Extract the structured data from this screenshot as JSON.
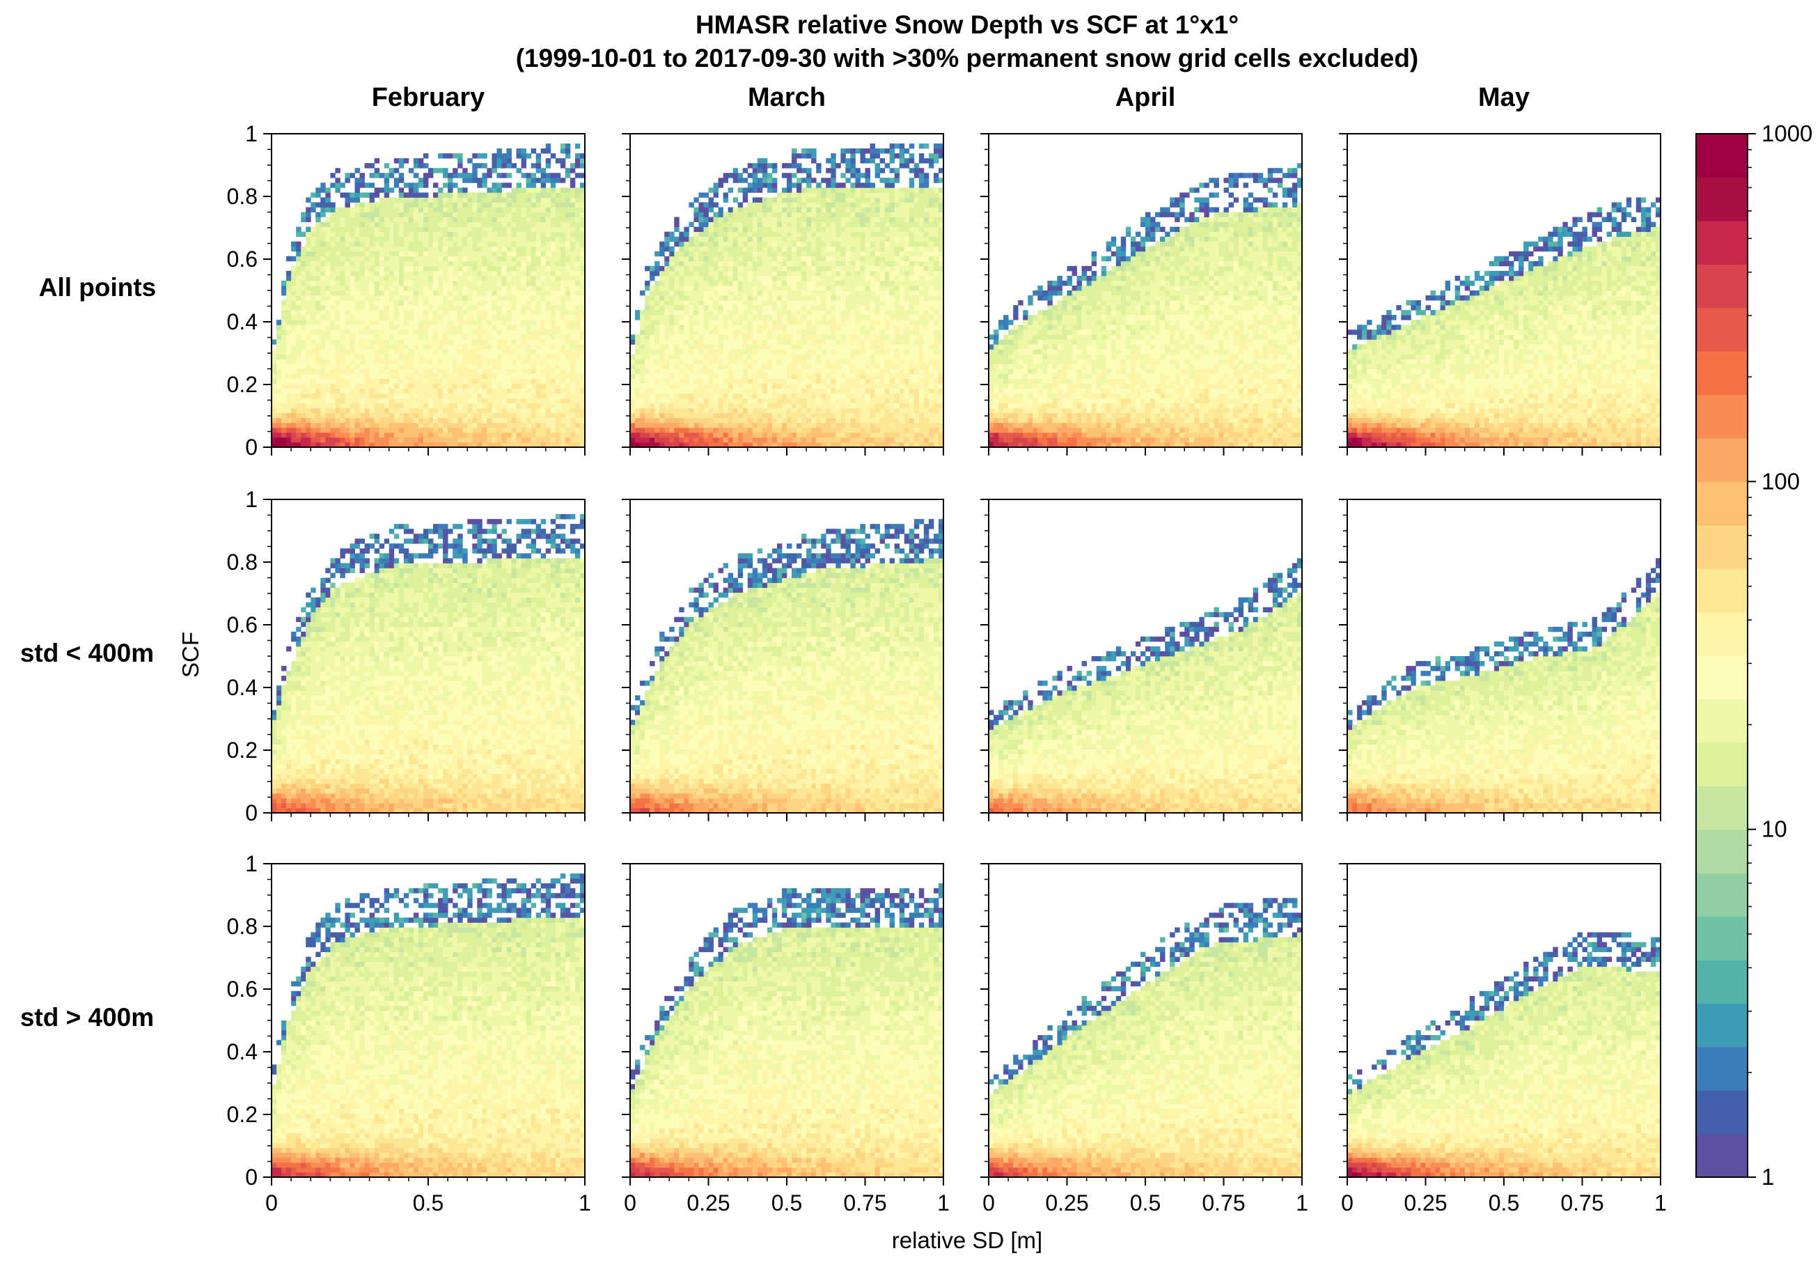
{
  "figure": {
    "title_line1": "HMASR relative Snow Depth vs SCF at 1°x1°",
    "title_line2": "(1999-10-01 to 2017-09-30 with >30% permanent snow grid cells excluded)",
    "xlabel": "relative SD [m]",
    "ylabel": "SCF",
    "columns": [
      "February",
      "March",
      "April",
      "May"
    ],
    "rows": [
      "All points",
      "std < 400m",
      "std > 400m"
    ]
  },
  "colorbar": {
    "scale": "log",
    "range": [
      1,
      1000
    ],
    "tick_labels": [
      "1",
      "10",
      "100",
      "1000"
    ],
    "colors": [
      "#5e4fa2",
      "#4461ab",
      "#3a7db9",
      "#3e9cb6",
      "#55b4aa",
      "#71c3a5",
      "#91d0a4",
      "#aedca2",
      "#c7e69f",
      "#ddf19b",
      "#eef8a6",
      "#fbfdb8",
      "#fff4a8",
      "#fee794",
      "#fed683",
      "#fdc171",
      "#fca965",
      "#f98e52",
      "#f47245",
      "#e75949",
      "#d7444c",
      "#c52848",
      "#a80f44",
      "#9e0142"
    ]
  },
  "chart_data": {
    "type": "heatmap",
    "description_axes": {
      "x_range": [
        0,
        1
      ],
      "y_range": [
        0,
        1
      ],
      "y_ticks": [
        "0",
        "0.2",
        "0.4",
        "0.6",
        "0.8",
        "1"
      ],
      "x_ticks_feb": [
        "0",
        "0.5",
        "1"
      ],
      "x_ticks_other": [
        "0",
        "0.25",
        "0.5",
        "0.75",
        "1"
      ],
      "color_scale": "log",
      "color_range": [
        1,
        1000
      ]
    },
    "panels": [
      {
        "row": "All points",
        "month": "February",
        "upper_boundary": [
          [
            0,
            0.3
          ],
          [
            0.05,
            0.6
          ],
          [
            0.12,
            0.78
          ],
          [
            0.2,
            0.86
          ],
          [
            0.35,
            0.9
          ],
          [
            1,
            0.95
          ]
        ],
        "peak_density": 1000
      },
      {
        "row": "All points",
        "month": "March",
        "upper_boundary": [
          [
            0,
            0.3
          ],
          [
            0.05,
            0.55
          ],
          [
            0.15,
            0.72
          ],
          [
            0.3,
            0.85
          ],
          [
            0.5,
            0.93
          ],
          [
            1,
            0.95
          ]
        ],
        "peak_density": 1000
      },
      {
        "row": "All points",
        "month": "April",
        "upper_boundary": [
          [
            0,
            0.35
          ],
          [
            0.1,
            0.45
          ],
          [
            0.3,
            0.58
          ],
          [
            0.5,
            0.72
          ],
          [
            0.7,
            0.84
          ],
          [
            1,
            0.88
          ]
        ],
        "peak_density": 700
      },
      {
        "row": "All points",
        "month": "May",
        "upper_boundary": [
          [
            0,
            0.35
          ],
          [
            0.2,
            0.45
          ],
          [
            0.4,
            0.55
          ],
          [
            0.6,
            0.65
          ],
          [
            0.8,
            0.74
          ],
          [
            1,
            0.8
          ]
        ],
        "peak_density": 1000
      },
      {
        "row": "std < 400m",
        "month": "February",
        "upper_boundary": [
          [
            0,
            0.3
          ],
          [
            0.05,
            0.5
          ],
          [
            0.12,
            0.7
          ],
          [
            0.2,
            0.82
          ],
          [
            0.4,
            0.9
          ],
          [
            1,
            0.93
          ]
        ],
        "peak_density": 300
      },
      {
        "row": "std < 400m",
        "month": "March",
        "upper_boundary": [
          [
            0,
            0.3
          ],
          [
            0.1,
            0.55
          ],
          [
            0.2,
            0.7
          ],
          [
            0.35,
            0.8
          ],
          [
            0.6,
            0.88
          ],
          [
            1,
            0.92
          ]
        ],
        "peak_density": 300
      },
      {
        "row": "std < 400m",
        "month": "April",
        "upper_boundary": [
          [
            0,
            0.3
          ],
          [
            0.2,
            0.42
          ],
          [
            0.4,
            0.5
          ],
          [
            0.6,
            0.58
          ],
          [
            0.8,
            0.66
          ],
          [
            1,
            0.8
          ]
        ],
        "peak_density": 200
      },
      {
        "row": "std < 400m",
        "month": "May",
        "upper_boundary": [
          [
            0,
            0.3
          ],
          [
            0.2,
            0.45
          ],
          [
            0.4,
            0.5
          ],
          [
            0.6,
            0.56
          ],
          [
            0.8,
            0.6
          ],
          [
            1,
            0.8
          ]
        ],
        "peak_density": 200
      },
      {
        "row": "std > 400m",
        "month": "February",
        "upper_boundary": [
          [
            0,
            0.3
          ],
          [
            0.05,
            0.55
          ],
          [
            0.12,
            0.75
          ],
          [
            0.2,
            0.85
          ],
          [
            0.35,
            0.9
          ],
          [
            1,
            0.95
          ]
        ],
        "peak_density": 500
      },
      {
        "row": "std > 400m",
        "month": "March",
        "upper_boundary": [
          [
            0,
            0.3
          ],
          [
            0.08,
            0.5
          ],
          [
            0.2,
            0.7
          ],
          [
            0.35,
            0.85
          ],
          [
            0.5,
            0.9
          ],
          [
            1,
            0.91
          ]
        ],
        "peak_density": 500
      },
      {
        "row": "std > 400m",
        "month": "April",
        "upper_boundary": [
          [
            0,
            0.3
          ],
          [
            0.15,
            0.42
          ],
          [
            0.3,
            0.55
          ],
          [
            0.5,
            0.7
          ],
          [
            0.7,
            0.84
          ],
          [
            1,
            0.88
          ]
        ],
        "peak_density": 400
      },
      {
        "row": "std > 400m",
        "month": "May",
        "upper_boundary": [
          [
            0,
            0.3
          ],
          [
            0.15,
            0.4
          ],
          [
            0.35,
            0.52
          ],
          [
            0.55,
            0.65
          ],
          [
            0.75,
            0.76
          ],
          [
            1,
            0.75
          ]
        ],
        "peak_density": 800
      }
    ]
  }
}
